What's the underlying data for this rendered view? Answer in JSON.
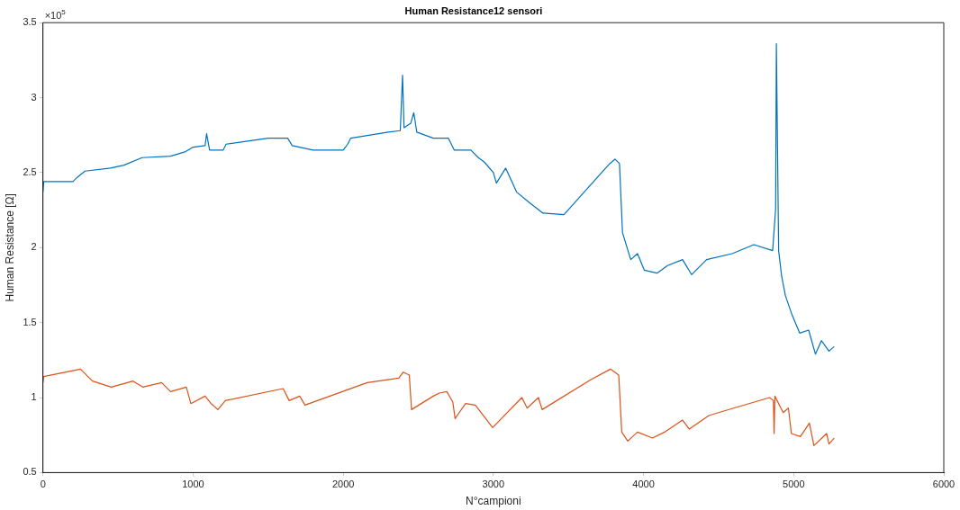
{
  "chart_data": {
    "type": "line",
    "title": "Human Resistance12 sensori",
    "xlabel": "N°campioni",
    "ylabel": "Human Resistance [Ω]",
    "annotations": [
      "×10$^{5}$"
    ],
    "xlim": [
      0,
      6000
    ],
    "xticks": [
      0,
      1000,
      2000,
      3000,
      4000,
      5000,
      6000
    ],
    "ylim": [
      0.5,
      3.5
    ],
    "yticks": [
      0.5,
      1,
      1.5,
      2,
      2.5,
      3,
      3.5
    ],
    "grid": false,
    "legend": false,
    "marker": "none",
    "line_style": "solid",
    "series": [
      {
        "color": "#0072bd",
        "x": [
          0,
          5,
          200,
          230,
          280,
          450,
          540,
          660,
          850,
          950,
          1000,
          1080,
          1090,
          1110,
          1200,
          1220,
          1500,
          1630,
          1660,
          1800,
          2000,
          2030,
          2050,
          2300,
          2380,
          2395,
          2405,
          2450,
          2470,
          2490,
          2600,
          2700,
          2740,
          2850,
          2900,
          2940,
          3000,
          3020,
          3082,
          3155,
          3240,
          3330,
          3470,
          3775,
          3810,
          3840,
          3860,
          3915,
          3960,
          4005,
          4090,
          4160,
          4260,
          4320,
          4420,
          4590,
          4735,
          4860,
          4880,
          4885,
          4900,
          4920,
          4945,
          4990,
          5040,
          5100,
          5145,
          5185,
          5235,
          5270
        ],
        "values": [
          2.37,
          2.44,
          2.44,
          2.47,
          2.51,
          2.53,
          2.55,
          2.6,
          2.61,
          2.64,
          2.67,
          2.68,
          2.76,
          2.65,
          2.65,
          2.69,
          2.73,
          2.73,
          2.68,
          2.65,
          2.65,
          2.69,
          2.73,
          2.77,
          2.78,
          3.15,
          2.8,
          2.83,
          2.9,
          2.77,
          2.73,
          2.73,
          2.65,
          2.65,
          2.6,
          2.57,
          2.5,
          2.43,
          2.53,
          2.37,
          2.3,
          2.23,
          2.22,
          2.56,
          2.59,
          2.56,
          2.1,
          1.92,
          1.96,
          1.85,
          1.83,
          1.88,
          1.92,
          1.82,
          1.92,
          1.96,
          2.02,
          1.98,
          2.26,
          3.36,
          1.98,
          1.81,
          1.68,
          1.55,
          1.43,
          1.45,
          1.29,
          1.38,
          1.31,
          1.34
        ]
      },
      {
        "color": "#d95319",
        "x": [
          0,
          5,
          250,
          330,
          455,
          600,
          665,
          790,
          850,
          955,
          985,
          1080,
          1120,
          1165,
          1215,
          1600,
          1640,
          1710,
          1745,
          2160,
          2370,
          2400,
          2440,
          2455,
          2600,
          2640,
          2690,
          2730,
          2745,
          2815,
          2880,
          2995,
          3190,
          3225,
          3300,
          3325,
          3650,
          3780,
          3835,
          3855,
          3895,
          3960,
          4060,
          4140,
          4260,
          4305,
          4435,
          4600,
          4840,
          4865,
          4870,
          4875,
          4930,
          4965,
          4985,
          5045,
          5105,
          5135,
          5220,
          5235,
          5270
        ],
        "values": [
          1.1,
          1.14,
          1.19,
          1.11,
          1.07,
          1.11,
          1.07,
          1.1,
          1.04,
          1.07,
          0.96,
          1.01,
          0.96,
          0.92,
          0.98,
          1.06,
          0.98,
          1.01,
          0.95,
          1.1,
          1.13,
          1.17,
          1.15,
          0.92,
          1.01,
          1.03,
          1.04,
          0.97,
          0.86,
          0.96,
          0.95,
          0.8,
          1.0,
          0.93,
          1.0,
          0.92,
          1.12,
          1.19,
          1.15,
          0.77,
          0.71,
          0.77,
          0.73,
          0.77,
          0.85,
          0.79,
          0.88,
          0.93,
          1.0,
          0.98,
          0.76,
          1.01,
          0.9,
          0.93,
          0.76,
          0.74,
          0.83,
          0.68,
          0.76,
          0.69,
          0.73
        ]
      }
    ]
  }
}
